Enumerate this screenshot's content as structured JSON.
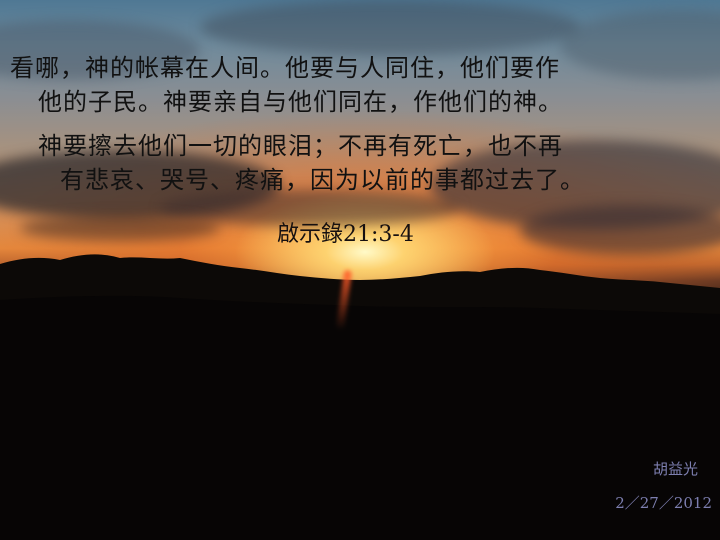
{
  "slide": {
    "verse_lines": [
      "看哪，神的帐幕在人间。他要与人同住，他们要作",
      "他的子民。神要亲自与他们同在，作他们的神。",
      "神要擦去他们一切的眼泪；不再有死亡，也不再",
      "有悲哀、哭号、疼痛，因为以前的事都过去了。"
    ],
    "reference": "啟示錄21:3-4",
    "author": "胡益光",
    "date": "2／27／2012"
  },
  "colors": {
    "verse_text": "#111111",
    "signature_text": "#7d7fb0",
    "sun": "#fff4c0"
  }
}
